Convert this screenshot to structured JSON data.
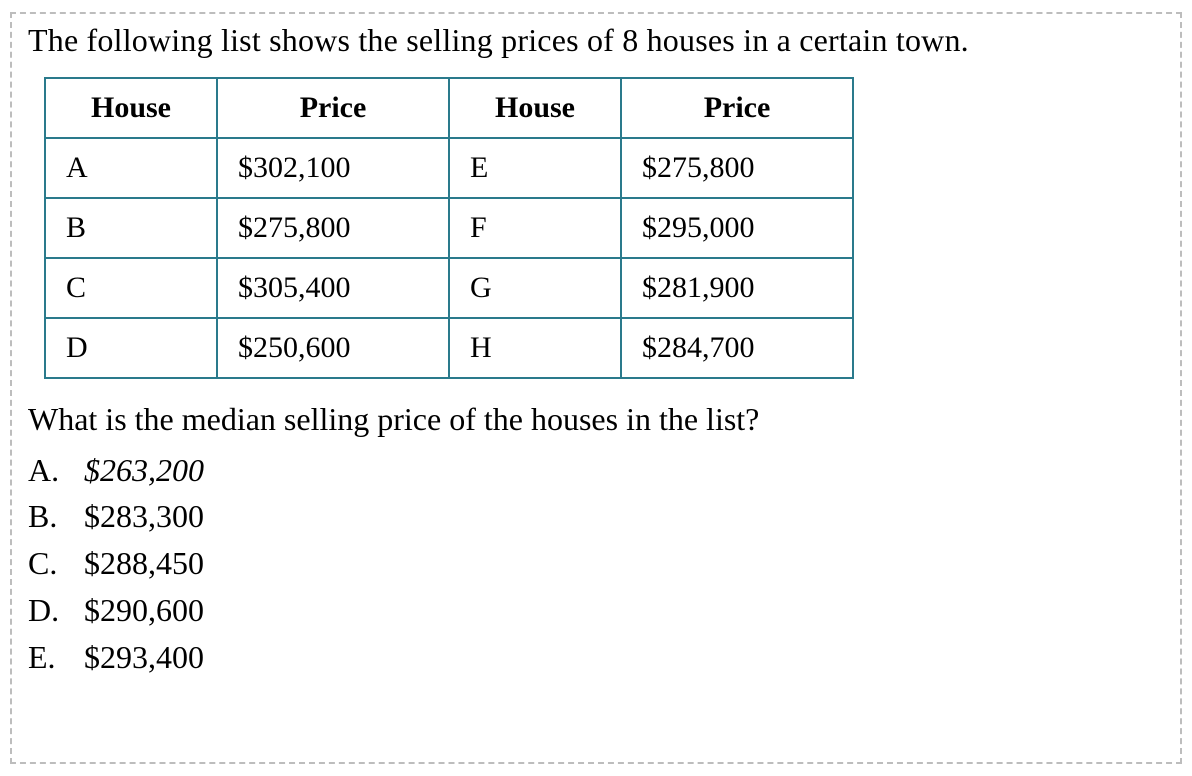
{
  "intro_text": "The following list shows the selling prices of 8 houses in a certain town.",
  "table": {
    "headers": {
      "house": "House",
      "price": "Price"
    },
    "rows": [
      {
        "left_house": "A",
        "left_price": "$302,100",
        "right_house": "E",
        "right_price": "$275,800"
      },
      {
        "left_house": "B",
        "left_price": "$275,800",
        "right_house": "F",
        "right_price": "$295,000"
      },
      {
        "left_house": "C",
        "left_price": "$305,400",
        "right_house": "G",
        "right_price": "$281,900"
      },
      {
        "left_house": "D",
        "left_price": "$250,600",
        "right_house": "H",
        "right_price": "$284,700"
      }
    ],
    "border_color": "#2a7a8c",
    "cell_fontsize": 30
  },
  "question_text": "What is the median selling price of the houses in the list?",
  "choices": [
    {
      "letter": "A.",
      "value": "$263,200",
      "italic": true
    },
    {
      "letter": "B.",
      "value": "$283,300",
      "italic": false
    },
    {
      "letter": "C.",
      "value": "$288,450",
      "italic": false
    },
    {
      "letter": "D.",
      "value": "$290,600",
      "italic": false
    },
    {
      "letter": "E.",
      "value": "$293,400",
      "italic": false
    }
  ],
  "colors": {
    "text": "#000000",
    "background": "#ffffff",
    "dashed_border": "#bdbdbd"
  },
  "typography": {
    "body_fontsize": 32,
    "font_family": "Times New Roman"
  }
}
